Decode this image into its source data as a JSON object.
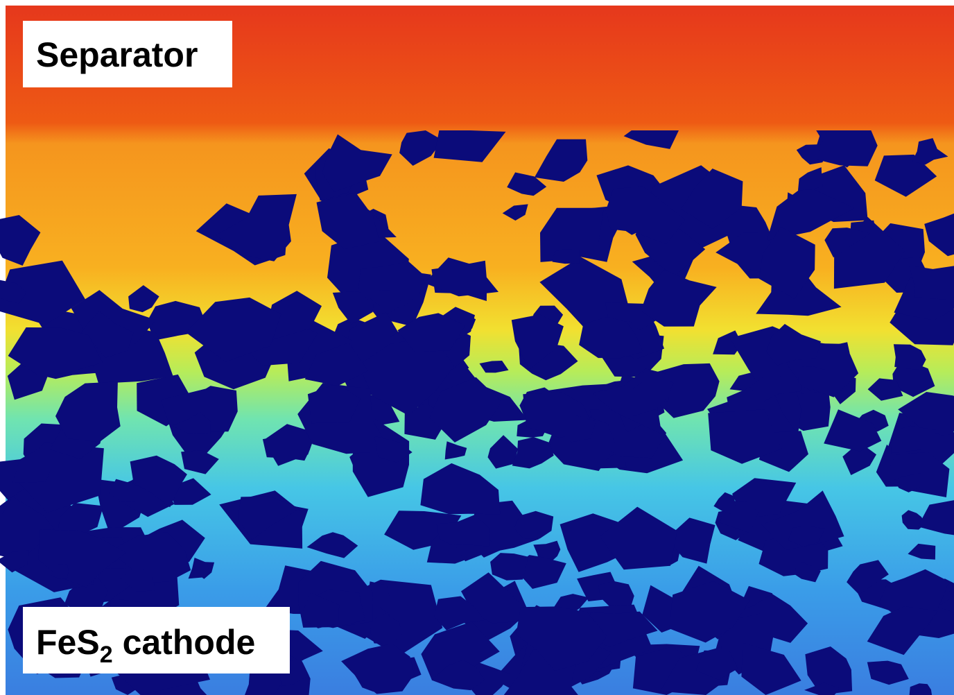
{
  "labels": {
    "separator": "Separator",
    "cathode": {
      "formula": "FeS",
      "subscript": "2",
      "word": "cathode"
    }
  }
}
